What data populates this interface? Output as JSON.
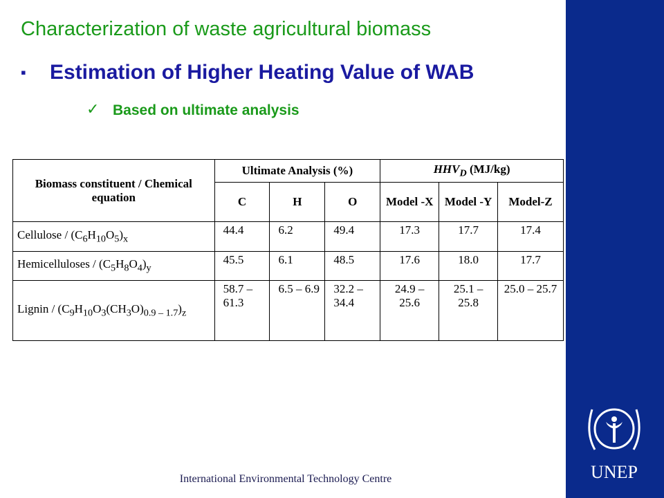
{
  "title": "Characterization of waste agricultural biomass",
  "bullet": "Estimation of Higher Heating Value of WAB",
  "sub_bullet": "Based on ultimate analysis",
  "table": {
    "header": {
      "constituent": "Biomass constituent / Chemical equation",
      "ultimate": "Ultimate Analysis (%)",
      "hhv": [
        "HHV",
        "D",
        " (MJ/kg)"
      ],
      "columns": [
        "C",
        "H",
        "O",
        "Model -X",
        "Model -Y",
        "Model-Z"
      ]
    },
    "rows": [
      {
        "name": [
          "Cellulose / (C",
          "6",
          "H",
          "10",
          "O",
          "5",
          ")",
          "x"
        ],
        "cells": [
          "44.4",
          "6.2",
          "49.4",
          "17.3",
          "17.7",
          "17.4"
        ]
      },
      {
        "name": [
          "Hemicelluloses / (C",
          "5",
          "H",
          "8",
          "O",
          "4",
          ")",
          "y"
        ],
        "cells": [
          "45.5",
          "6.1",
          "48.5",
          "17.6",
          "18.0",
          "17.7"
        ]
      },
      {
        "name": [
          "Lignin / (C",
          "9",
          "H",
          "10",
          "O",
          "3",
          "(CH",
          "3",
          "O)",
          "0.9 – 1.7",
          ")",
          "z"
        ],
        "cells": [
          "58.7 – 61.3",
          "6.5 – 6.9",
          "32.2 – 34.4",
          "24.9 – 25.6",
          "25.1 – 25.8",
          "25.0 – 25.7"
        ]
      }
    ]
  },
  "footer": "International Environmental Technology Centre",
  "logo": "UNEP"
}
